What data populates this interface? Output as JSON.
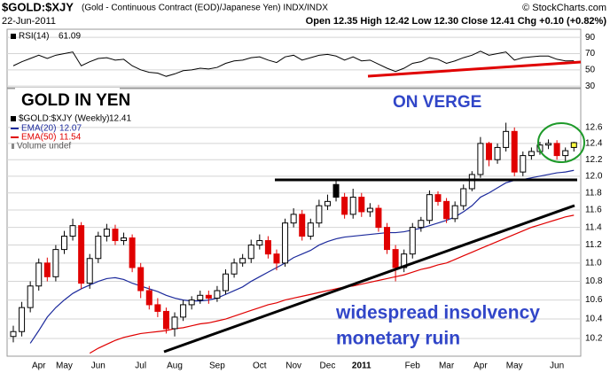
{
  "header": {
    "title": "$GOLD:$XJY",
    "subtitle": "(Gold - Continuous Contract (EOD)/Japanese Yen) INDX/INDX",
    "credit": "© StockCharts.com",
    "date": "22-Jun-2011",
    "quote": "Open 12.35 High 12.42 Low 12.30 Close 12.41 Chg +0.10 (+0.82%)"
  },
  "chart_data": [
    {
      "type": "line",
      "name": "RSI(14)",
      "color": "#000000",
      "values": [
        55,
        60,
        64,
        68,
        64,
        68,
        70,
        72,
        55,
        60,
        64,
        65,
        62,
        63,
        55,
        50,
        47,
        46,
        42,
        45,
        49,
        50,
        52,
        51,
        53,
        58,
        61,
        62,
        65,
        66,
        62,
        59,
        66,
        68,
        62,
        65,
        68,
        69,
        67,
        62,
        66,
        61,
        62,
        57,
        52,
        48,
        52,
        58,
        60,
        65,
        63,
        58,
        61,
        65,
        68,
        73,
        68,
        70,
        72,
        62,
        65,
        66,
        67,
        67,
        63,
        61,
        61.09
      ],
      "ylim": [
        28,
        100
      ],
      "yticks": [
        30,
        50,
        70,
        90
      ],
      "grid": true
    },
    {
      "type": "candlestick",
      "title": "GOLD IN YEN",
      "annotations": [
        "ON VERGE",
        "widespread insolvency",
        "monetary ruin"
      ],
      "categories": [
        null,
        null,
        null,
        "Apr",
        null,
        null,
        "May",
        null,
        null,
        null,
        "Jun",
        null,
        null,
        null,
        null,
        "Jul",
        null,
        null,
        null,
        "Aug",
        null,
        null,
        null,
        null,
        "Sep",
        null,
        null,
        null,
        null,
        "Oct",
        null,
        null,
        null,
        "Nov",
        null,
        null,
        null,
        "Dec",
        null,
        null,
        null,
        "2011",
        null,
        null,
        null,
        null,
        null,
        "Feb",
        null,
        null,
        null,
        "Mar",
        null,
        null,
        null,
        "Apr",
        null,
        null,
        null,
        "May",
        null,
        null,
        null,
        null,
        "Jun",
        null,
        null
      ],
      "series": [
        {
          "name": "$GOLD:$XJY (Weekly)",
          "up_color": "#000000",
          "down_color": "#e00000",
          "last_color": "#ffff44",
          "open": [
            10.22,
            10.27,
            10.52,
            10.75,
            11.0,
            10.85,
            11.15,
            11.3,
            11.42,
            10.78,
            11.05,
            11.3,
            11.38,
            11.25,
            11.28,
            10.95,
            10.7,
            10.55,
            10.48,
            10.3,
            10.42,
            10.55,
            10.6,
            10.65,
            10.62,
            10.7,
            10.88,
            11.0,
            11.05,
            11.2,
            11.25,
            11.1,
            11.0,
            11.45,
            11.55,
            11.3,
            11.45,
            11.65,
            11.9,
            11.75,
            11.55,
            11.75,
            11.58,
            11.62,
            11.4,
            11.15,
            10.95,
            11.1,
            11.4,
            11.48,
            11.78,
            11.7,
            11.5,
            11.65,
            11.85,
            12.02,
            12.4,
            12.2,
            12.35,
            12.55,
            12.05,
            12.25,
            12.3,
            12.38,
            12.4,
            12.25,
            12.35
          ],
          "high": [
            10.33,
            10.58,
            10.8,
            11.05,
            11.06,
            11.2,
            11.36,
            11.5,
            11.46,
            11.1,
            11.35,
            11.44,
            11.43,
            11.34,
            11.32,
            11.0,
            10.75,
            10.62,
            10.52,
            10.47,
            10.6,
            10.64,
            10.7,
            10.7,
            10.75,
            10.93,
            11.05,
            11.1,
            11.26,
            11.32,
            11.3,
            11.15,
            11.5,
            11.62,
            11.6,
            11.5,
            11.72,
            11.78,
            11.95,
            11.8,
            11.85,
            11.8,
            11.68,
            11.66,
            11.45,
            11.2,
            11.15,
            11.45,
            11.52,
            11.83,
            11.82,
            11.74,
            11.7,
            11.9,
            12.06,
            12.48,
            12.42,
            12.4,
            12.66,
            12.6,
            12.3,
            12.35,
            12.42,
            12.45,
            12.44,
            12.35,
            12.42
          ],
          "low": [
            10.16,
            10.22,
            10.47,
            10.7,
            10.8,
            10.8,
            11.1,
            11.25,
            10.72,
            10.72,
            11.0,
            11.24,
            11.2,
            11.2,
            10.9,
            10.62,
            10.5,
            10.42,
            10.25,
            10.22,
            10.38,
            10.5,
            10.56,
            10.56,
            10.58,
            10.66,
            10.84,
            10.96,
            11.0,
            11.15,
            11.05,
            10.92,
            10.96,
            11.4,
            11.25,
            11.26,
            11.4,
            11.6,
            11.7,
            11.5,
            11.5,
            11.52,
            11.52,
            11.35,
            11.1,
            10.8,
            10.9,
            11.05,
            11.35,
            11.44,
            11.65,
            11.45,
            11.46,
            11.6,
            11.82,
            11.98,
            12.12,
            12.15,
            12.3,
            12.0,
            12.0,
            12.2,
            12.26,
            12.33,
            12.2,
            12.18,
            12.3
          ],
          "close": [
            10.27,
            10.52,
            10.75,
            11.0,
            10.85,
            11.15,
            11.3,
            11.42,
            10.78,
            11.05,
            11.3,
            11.38,
            11.25,
            11.28,
            10.95,
            10.7,
            10.55,
            10.48,
            10.3,
            10.42,
            10.55,
            10.6,
            10.65,
            10.62,
            10.7,
            10.88,
            11.0,
            11.05,
            11.2,
            11.25,
            11.1,
            11.0,
            11.45,
            11.55,
            11.3,
            11.45,
            11.65,
            11.7,
            11.75,
            11.55,
            11.75,
            11.58,
            11.62,
            11.4,
            11.15,
            10.95,
            11.1,
            11.4,
            11.48,
            11.78,
            11.7,
            11.5,
            11.65,
            11.85,
            12.02,
            12.4,
            12.2,
            12.35,
            12.55,
            12.05,
            12.25,
            12.3,
            12.38,
            12.4,
            12.25,
            12.31,
            12.41
          ]
        }
      ],
      "overlays": [
        {
          "name": "EMA(20)",
          "color": "#1c2a9c",
          "values": [
            null,
            null,
            10.15,
            10.28,
            10.42,
            10.52,
            10.6,
            10.67,
            10.72,
            10.76,
            10.8,
            10.83,
            10.84,
            10.82,
            10.78,
            10.75,
            10.72,
            10.69,
            10.65,
            10.62,
            10.6,
            10.59,
            10.59,
            10.6,
            10.62,
            10.66,
            10.7,
            10.74,
            10.8,
            10.85,
            10.9,
            10.95,
            11.0,
            11.06,
            11.1,
            11.14,
            11.2,
            11.24,
            11.27,
            11.29,
            11.3,
            11.31,
            11.32,
            11.33,
            11.34,
            11.34,
            11.35,
            11.37,
            11.39,
            11.42,
            11.45,
            11.48,
            11.52,
            11.58,
            11.65,
            11.75,
            11.8,
            11.86,
            11.92,
            11.95,
            11.96,
            11.98,
            12.0,
            12.02,
            12.04,
            12.05,
            12.07
          ]
        },
        {
          "name": "EMA(50)",
          "color": "#e00000",
          "values": [
            null,
            null,
            null,
            null,
            null,
            null,
            null,
            null,
            null,
            10.05,
            10.1,
            10.14,
            10.18,
            10.21,
            10.23,
            10.25,
            10.26,
            10.27,
            10.28,
            10.3,
            10.31,
            10.33,
            10.35,
            10.36,
            10.38,
            10.4,
            10.43,
            10.46,
            10.49,
            10.52,
            10.55,
            10.57,
            10.6,
            10.62,
            10.64,
            10.66,
            10.68,
            10.7,
            10.72,
            10.74,
            10.75,
            10.77,
            10.79,
            10.81,
            10.83,
            10.85,
            10.87,
            10.9,
            10.93,
            10.95,
            10.98,
            11.0,
            11.04,
            11.08,
            11.12,
            11.16,
            11.2,
            11.24,
            11.28,
            11.32,
            11.36,
            11.4,
            11.43,
            11.46,
            11.49,
            11.52,
            11.54
          ]
        }
      ],
      "volume_label": "Volume undef",
      "ylim": [
        10.02,
        13.1
      ],
      "log": true,
      "grid": true,
      "yticks": [
        10.2,
        10.4,
        10.6,
        10.8,
        {
          "value": 11,
          "label": "11.0"
        },
        11.2,
        11.4,
        11.6,
        11.8,
        {
          "value": 12,
          "label": "12.0"
        },
        12.2,
        12.4,
        12.6
      ]
    }
  ]
}
